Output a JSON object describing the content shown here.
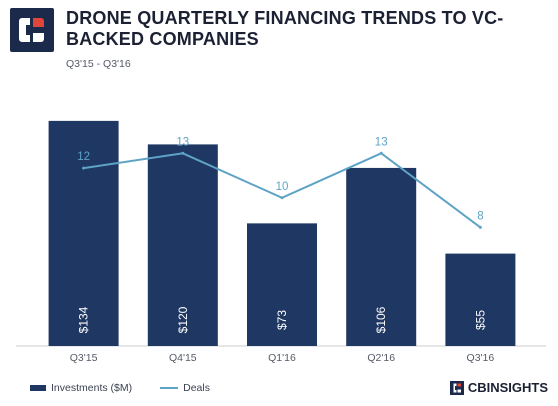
{
  "header": {
    "title": "DRONE QUARTERLY FINANCING TRENDS TO VC-BACKED COMPANIES",
    "subtitle": "Q3'15 - Q3'16",
    "logo_icon": "cb-insights-logo-icon"
  },
  "colors": {
    "bar": "#1f3763",
    "line": "#5ea3c6",
    "axis": "#c9ccd2",
    "tick": "#555a66"
  },
  "chart_data": {
    "type": "bar",
    "categories": [
      "Q3'15",
      "Q4'15",
      "Q1'16",
      "Q2'16",
      "Q3'16"
    ],
    "series": [
      {
        "name": "Investments ($M)",
        "type": "bar",
        "values": [
          134,
          120,
          73,
          106,
          55
        ],
        "labels": [
          "$134",
          "$120",
          "$73",
          "$106",
          "$55"
        ]
      },
      {
        "name": "Deals",
        "type": "line",
        "values": [
          12,
          13,
          10,
          13,
          8
        ]
      }
    ],
    "ylim_investments": [
      0,
      150
    ],
    "ylim_deals": [
      0,
      17
    ],
    "legend_position": "bottom-left",
    "grid": false
  },
  "footer": {
    "brand": "CBINSIGHTS",
    "brand_icon": "cb-insights-mark-icon"
  }
}
